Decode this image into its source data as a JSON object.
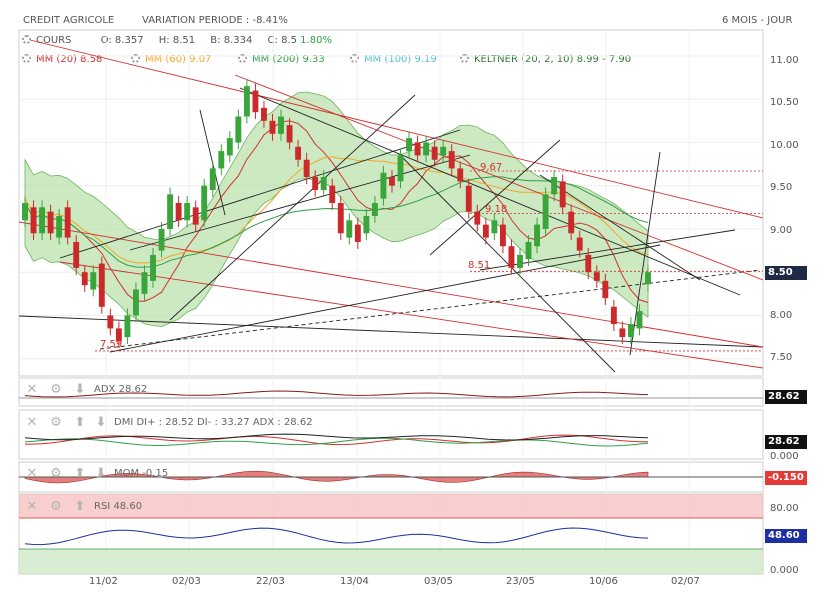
{
  "header": {
    "name": "CREDIT AGRICOLE",
    "variation": "VARIATION PERIODE : -8.41%",
    "period": "6 MOIS - JOUR"
  },
  "quote": {
    "cours_label": "COURS",
    "o_label": "O:",
    "o": "8.357",
    "h_label": "H:",
    "h": "8.51",
    "b_label": "B:",
    "b": "8.334",
    "c_label": "C:",
    "c": "8.5",
    "change": "1.80%"
  },
  "indicators": [
    {
      "label": "MM (20)",
      "value": "8.58",
      "color": "#d32f2f"
    },
    {
      "label": "MM (60)",
      "value": "9.07",
      "color": "#f5a623"
    },
    {
      "label": "MM (200)",
      "value": "9.33",
      "color": "#2e9e48"
    },
    {
      "label": "MM (100)",
      "value": "9.19",
      "color": "#4ec0d8"
    },
    {
      "label": "KELTNER (20, 2, 10)",
      "value": "8.99 - 7.90",
      "color": "#2e9e48"
    }
  ],
  "panels": {
    "adx": {
      "label": "ADX",
      "value": "28.62",
      "tag": "28.62"
    },
    "dmi": {
      "label": "DMI",
      "text": "DI+ : 28.52 DI- : 33.27 ADX : 28.62",
      "tag": "28.62",
      "bottom": "0.000"
    },
    "mom": {
      "label": "MOM",
      "value": "-0.15",
      "tag": "-0.150"
    },
    "rsi": {
      "label": "RSI",
      "value": "48.60",
      "tag": "48.60",
      "top": "80.00",
      "bottom": "0.000"
    }
  },
  "chart_data": {
    "type": "candlestick",
    "y_ticks": [
      "11.00",
      "10.50",
      "10.00",
      "9.50",
      "9.00",
      "8.50",
      "8.00",
      "7.50"
    ],
    "ylim": [
      7.3,
      11.3
    ],
    "last_price": "8.50",
    "x_ticks": [
      "11/02",
      "02/03",
      "22/03",
      "13/04",
      "03/05",
      "23/05",
      "10/06",
      "02/07"
    ],
    "annotations": [
      "9.67",
      "9.18",
      "8.51",
      "7.59"
    ],
    "reference_levels": [
      9.67,
      9.18,
      8.51,
      7.59
    ],
    "candles": [
      {
        "o": 9.1,
        "c": 9.3
      },
      {
        "o": 9.25,
        "c": 8.95
      },
      {
        "o": 8.95,
        "c": 9.25
      },
      {
        "o": 9.2,
        "c": 8.95
      },
      {
        "o": 8.9,
        "c": 9.15
      },
      {
        "o": 9.25,
        "c": 8.9
      },
      {
        "o": 8.85,
        "c": 8.55
      },
      {
        "o": 8.5,
        "c": 8.35
      },
      {
        "o": 8.3,
        "c": 8.5
      },
      {
        "o": 8.6,
        "c": 8.1
      },
      {
        "o": 8.0,
        "c": 7.85
      },
      {
        "o": 7.85,
        "c": 7.7
      },
      {
        "o": 7.75,
        "c": 8.0
      },
      {
        "o": 8.0,
        "c": 8.3
      },
      {
        "o": 8.25,
        "c": 8.5
      },
      {
        "o": 8.4,
        "c": 8.7
      },
      {
        "o": 8.75,
        "c": 9.0
      },
      {
        "o": 9.0,
        "c": 9.4
      },
      {
        "o": 9.3,
        "c": 9.1
      },
      {
        "o": 9.1,
        "c": 9.3
      },
      {
        "o": 9.25,
        "c": 9.05
      },
      {
        "o": 9.1,
        "c": 9.5
      },
      {
        "o": 9.45,
        "c": 9.7
      },
      {
        "o": 9.7,
        "c": 9.9
      },
      {
        "o": 9.85,
        "c": 10.05
      },
      {
        "o": 10.0,
        "c": 10.3
      },
      {
        "o": 10.3,
        "c": 10.65
      },
      {
        "o": 10.6,
        "c": 10.35
      },
      {
        "o": 10.4,
        "c": 10.25
      },
      {
        "o": 10.25,
        "c": 10.1
      },
      {
        "o": 10.1,
        "c": 10.3
      },
      {
        "o": 10.2,
        "c": 10.0
      },
      {
        "o": 9.95,
        "c": 9.8
      },
      {
        "o": 9.8,
        "c": 9.6
      },
      {
        "o": 9.6,
        "c": 9.45
      },
      {
        "o": 9.45,
        "c": 9.6
      },
      {
        "o": 9.5,
        "c": 9.3
      },
      {
        "o": 9.3,
        "c": 8.95
      },
      {
        "o": 8.9,
        "c": 9.1
      },
      {
        "o": 9.05,
        "c": 8.85
      },
      {
        "o": 8.95,
        "c": 9.15
      },
      {
        "o": 9.15,
        "c": 9.3
      },
      {
        "o": 9.35,
        "c": 9.65
      },
      {
        "o": 9.6,
        "c": 9.5
      },
      {
        "o": 9.55,
        "c": 9.85
      },
      {
        "o": 9.9,
        "c": 10.05
      },
      {
        "o": 10.0,
        "c": 9.85
      },
      {
        "o": 9.85,
        "c": 10.0
      },
      {
        "o": 9.95,
        "c": 9.8
      },
      {
        "o": 9.85,
        "c": 9.95
      },
      {
        "o": 9.9,
        "c": 9.7
      },
      {
        "o": 9.7,
        "c": 9.55
      },
      {
        "o": 9.5,
        "c": 9.2
      },
      {
        "o": 9.2,
        "c": 9.05
      },
      {
        "o": 9.05,
        "c": 8.9
      },
      {
        "o": 8.95,
        "c": 9.1
      },
      {
        "o": 9.05,
        "c": 8.8
      },
      {
        "o": 8.8,
        "c": 8.55
      },
      {
        "o": 8.55,
        "c": 8.7
      },
      {
        "o": 8.65,
        "c": 8.85
      },
      {
        "o": 8.8,
        "c": 9.05
      },
      {
        "o": 9.0,
        "c": 9.4
      },
      {
        "o": 9.4,
        "c": 9.6
      },
      {
        "o": 9.55,
        "c": 9.25
      },
      {
        "o": 9.2,
        "c": 8.95
      },
      {
        "o": 8.9,
        "c": 8.75
      },
      {
        "o": 8.7,
        "c": 8.5
      },
      {
        "o": 8.5,
        "c": 8.4
      },
      {
        "o": 8.4,
        "c": 8.2
      },
      {
        "o": 8.1,
        "c": 7.9
      },
      {
        "o": 7.85,
        "c": 7.75
      },
      {
        "o": 7.75,
        "c": 7.9
      },
      {
        "o": 7.85,
        "c": 8.05
      },
      {
        "o": 8.36,
        "c": 8.5
      }
    ]
  }
}
